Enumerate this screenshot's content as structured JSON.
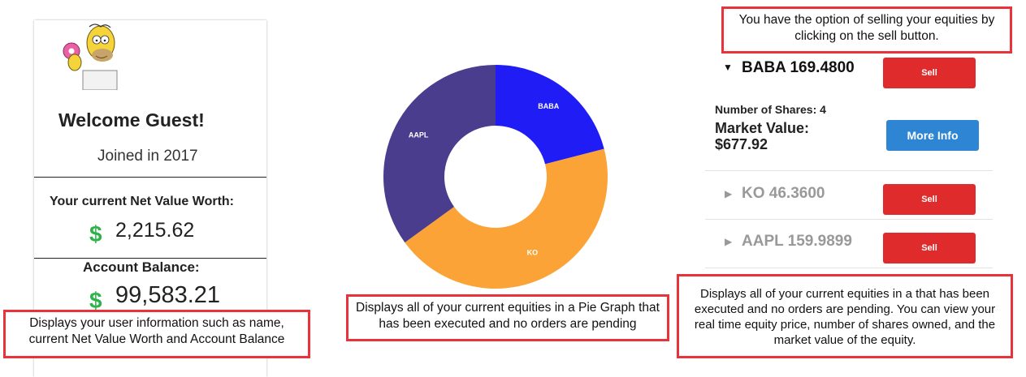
{
  "profile": {
    "welcome": "Welcome Guest!",
    "joined": "Joined in 2017",
    "net_value_label": "Your current Net Value Worth:",
    "net_value_currency": "$",
    "net_value": "2,215.62",
    "balance_label": "Account Balance:",
    "balance_currency": "$",
    "balance": "99,583.21"
  },
  "notes": {
    "left": "Displays your user information such as name, current Net Value Worth and Account Balance",
    "center": "Displays all of your current equities in a Pie Graph that has been executed and no orders are pending",
    "top_right": "You have the option of selling your equities by clicking on the sell button.",
    "bottom_right": "Displays all of your current equities in a that has been executed and no orders are pending. You can view your real time equity price, number of shares owned, and the market value of the equity."
  },
  "chart_data": {
    "type": "pie",
    "donut": true,
    "categories": [
      "BABA",
      "KO",
      "AAPL"
    ],
    "values": [
      21,
      44,
      35
    ],
    "colors": [
      "#1f1cf5",
      "#fba336",
      "#4a3d8e"
    ]
  },
  "equities": [
    {
      "label": "BABA 169.4800",
      "expanded": true,
      "sell_label": "Sell",
      "shares_label": "Number of Shares: 4",
      "market_value_label": "Market Value:",
      "market_value": "$677.92",
      "more_info_label": "More Info"
    },
    {
      "label": "KO 46.3600",
      "expanded": false,
      "sell_label": "Sell"
    },
    {
      "label": "AAPL 159.9899",
      "expanded": false,
      "sell_label": "Sell"
    }
  ],
  "icons": {
    "avatar": "homer-avatar",
    "expanded": "caret-down-icon",
    "collapsed": "caret-right-icon"
  }
}
